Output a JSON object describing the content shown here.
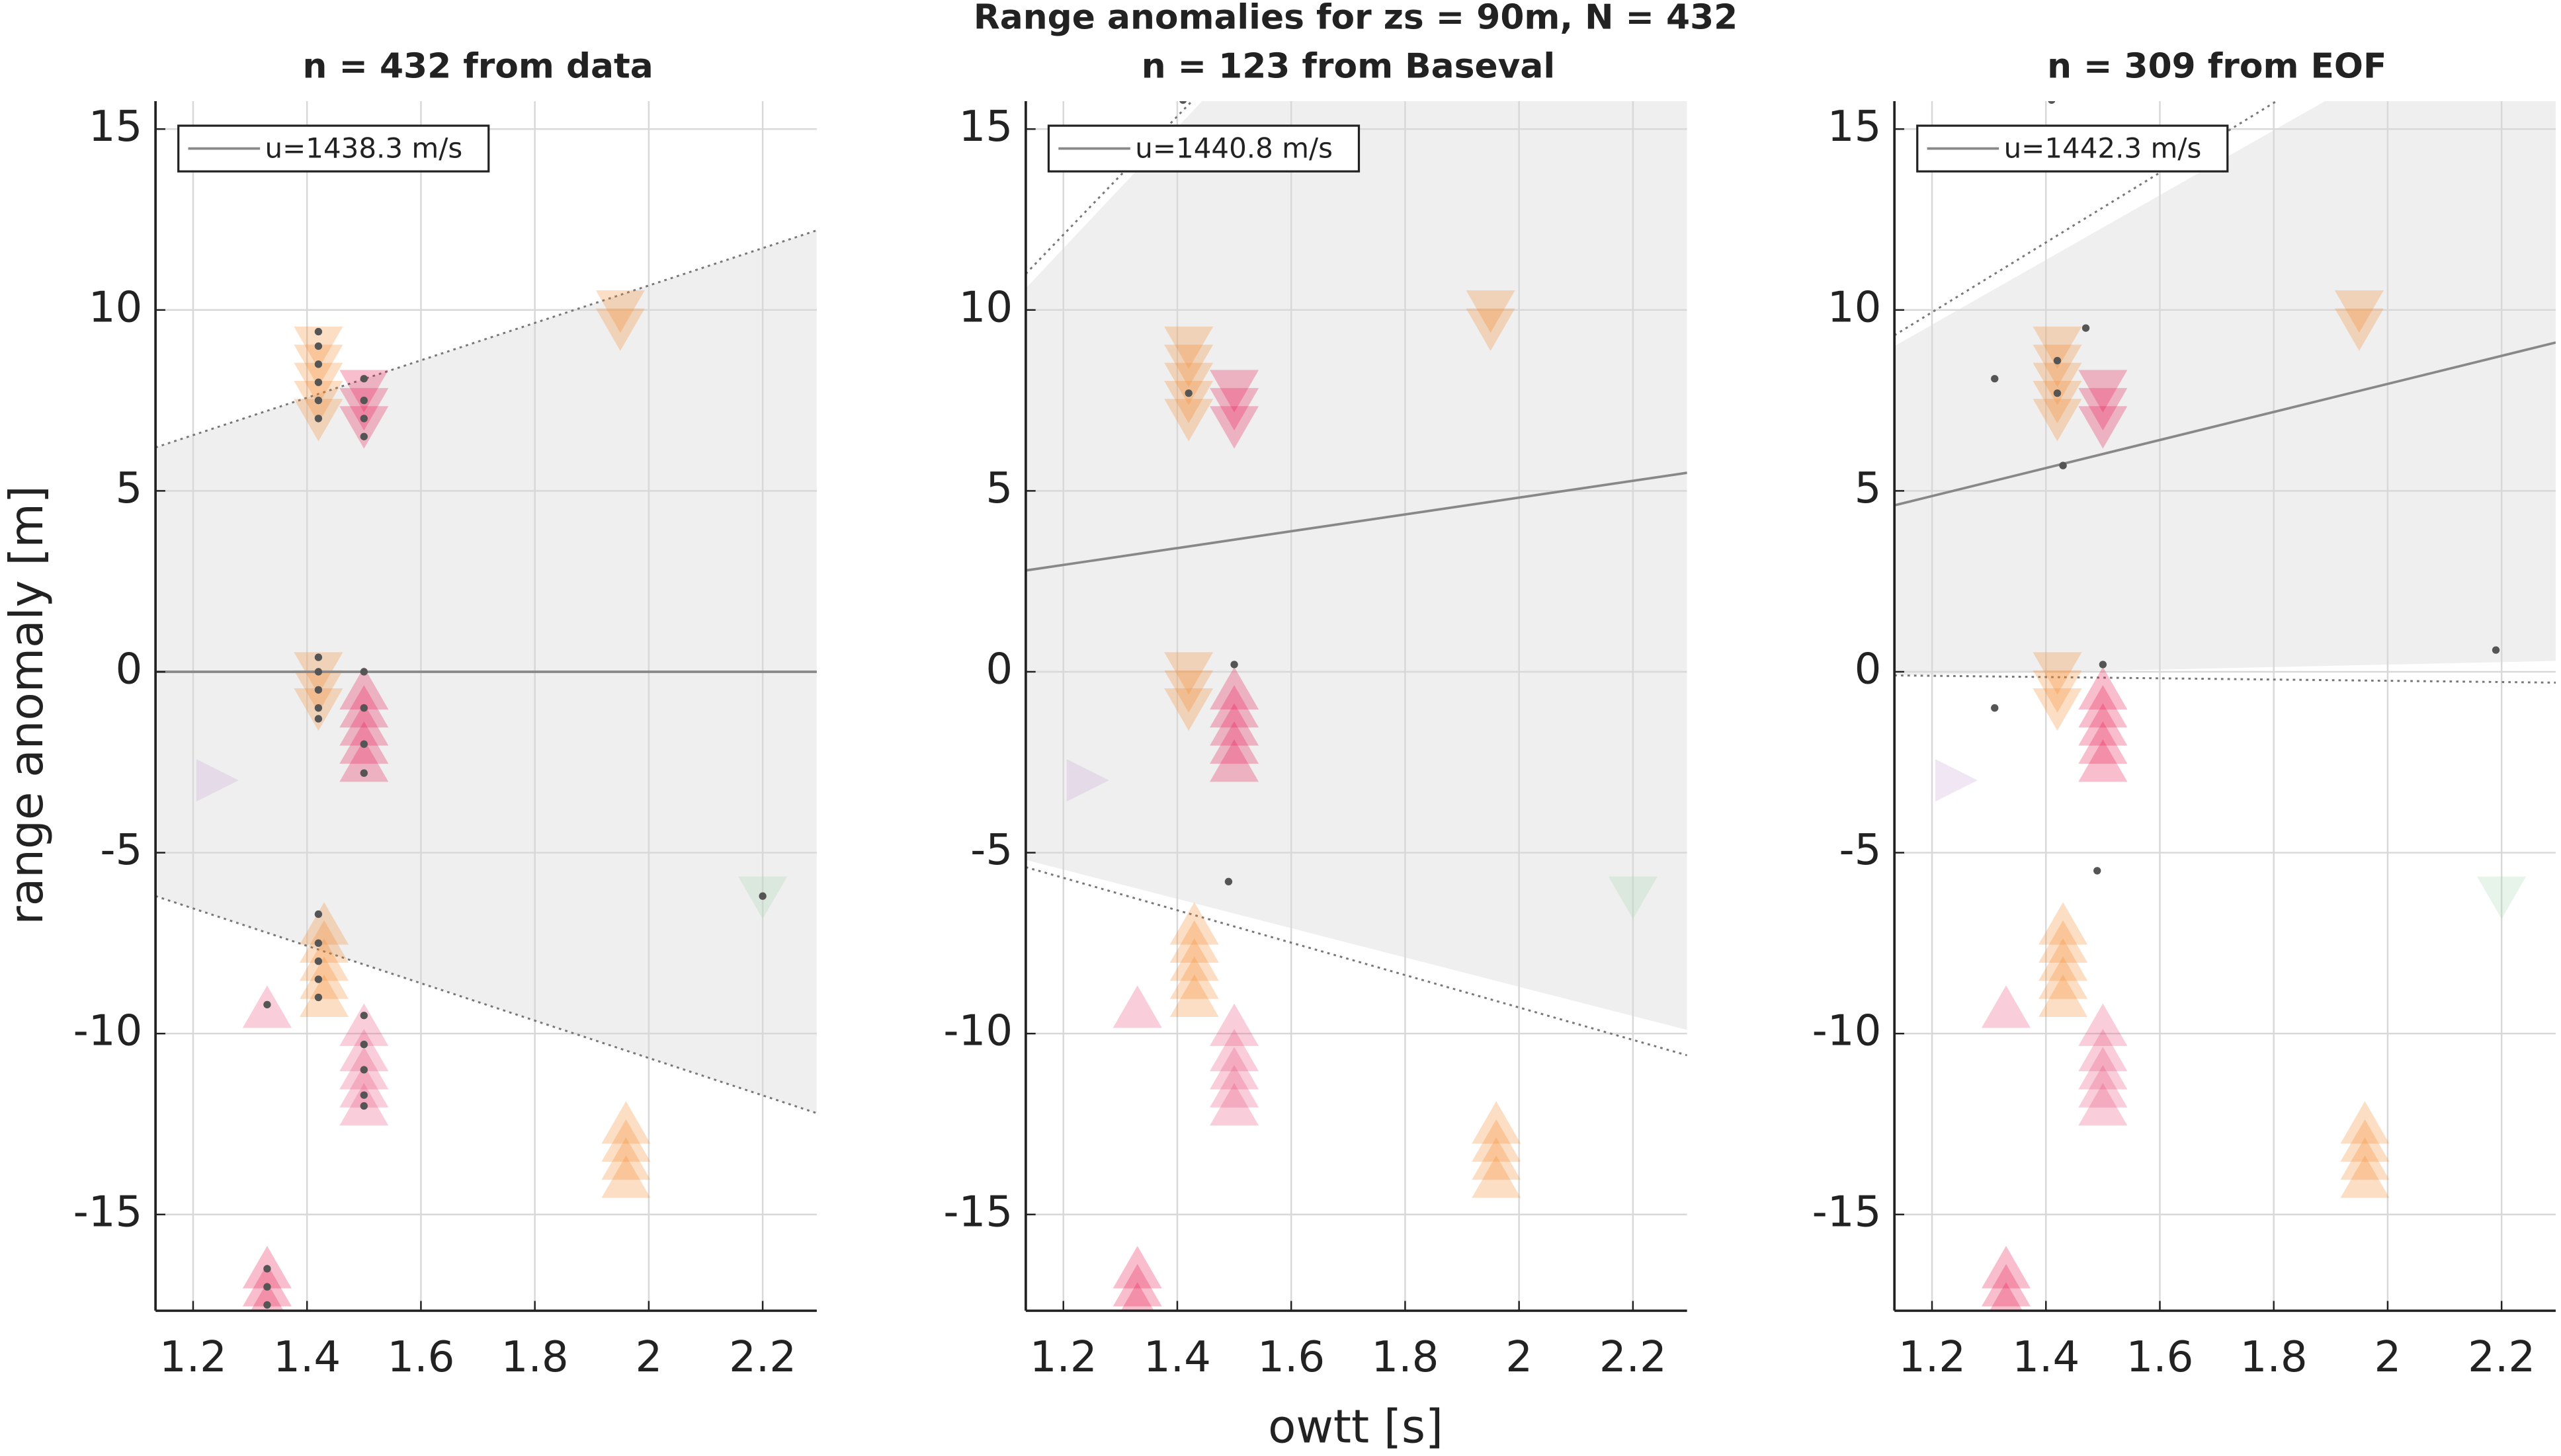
{
  "title": "Range anomalies for zs = 90m, N = 432",
  "xlabel": "owtt [s]",
  "ylabel": "range anomaly [m]",
  "chart_data": [
    {
      "type": "scatter",
      "title": "n = 432 from data",
      "xlim": [
        1.134,
        2.295
      ],
      "ylim": [
        -17.66,
        15.77
      ],
      "xticks": [
        1.2,
        1.4,
        1.6,
        1.8,
        2,
        2.2
      ],
      "yticks": [
        -15,
        -10,
        -5,
        0,
        5,
        10,
        15
      ],
      "grid": true,
      "fit": {
        "name": "u=1438.3 m/s",
        "color": "#888888",
        "x": [
          1.134,
          2.295
        ],
        "y": [
          0,
          0
        ]
      },
      "band": {
        "color": "#efefef",
        "x": [
          1.134,
          2.295
        ],
        "upper": [
          6.2,
          12.2
        ],
        "lower": [
          -6.2,
          -12.2
        ]
      },
      "limits": [
        {
          "x": [
            1.134,
            2.295
          ],
          "y": [
            6.2,
            12.2
          ]
        },
        {
          "x": [
            1.134,
            2.295
          ],
          "y": [
            -6.2,
            -12.2
          ]
        }
      ],
      "groups": [
        {
          "shape": "down",
          "color": "#f58a2a",
          "x": 1.42,
          "y": [
            9,
            8.5,
            8,
            7.5,
            7
          ]
        },
        {
          "shape": "down",
          "color": "#e8174f",
          "x": 1.5,
          "y": [
            7.8,
            7.3,
            6.8
          ]
        },
        {
          "shape": "down",
          "color": "#f58a2a",
          "x": 1.95,
          "y": [
            10,
            9.5
          ]
        },
        {
          "shape": "down",
          "color": "#f58a2a",
          "x": 1.42,
          "y": [
            0,
            -0.5,
            -1
          ]
        },
        {
          "shape": "up",
          "color": "#e8174f",
          "x": 1.5,
          "y": [
            -0.5,
            -1,
            -1.5,
            -2,
            -2.5
          ]
        },
        {
          "shape": "right",
          "color": "#c9a6d6",
          "x": 1.24,
          "y": [
            -3
          ]
        },
        {
          "shape": "down",
          "color": "#a8d8b0",
          "x": 2.2,
          "y": [
            -6.2
          ]
        },
        {
          "shape": "up",
          "color": "#f58a2a",
          "x": 1.43,
          "y": [
            -7,
            -7.5,
            -8,
            -8.5,
            -9
          ]
        },
        {
          "shape": "up",
          "color": "#e8507a",
          "x": 1.33,
          "y": [
            -9.3
          ]
        },
        {
          "shape": "up",
          "color": "#e8507a",
          "x": 1.5,
          "y": [
            -9.8,
            -10.5,
            -11,
            -11.5,
            -12
          ]
        },
        {
          "shape": "up",
          "color": "#f58a2a",
          "x": 1.96,
          "y": [
            -12.5,
            -13,
            -13.5,
            -14
          ]
        },
        {
          "shape": "up",
          "color": "#e8174f",
          "x": 1.33,
          "y": [
            -16.5,
            -17,
            -17.5
          ]
        }
      ],
      "dots": {
        "color": "#555555",
        "x": [
          1.42,
          1.42,
          1.42,
          1.42,
          1.42,
          1.42,
          1.42,
          1.42,
          1.42,
          1.42,
          1.42,
          1.42,
          1.42,
          1.42,
          1.42,
          1.42,
          1.5,
          1.5,
          1.5,
          1.5,
          1.5,
          1.5,
          1.5,
          1.5,
          1.5,
          1.5,
          1.5,
          1.5,
          1.5,
          1.33,
          1.33,
          1.33,
          1.33,
          2.2
        ],
        "y": [
          9.4,
          9,
          8.5,
          8,
          7.5,
          7,
          0.4,
          0,
          -0.5,
          -1,
          -1.3,
          -6.7,
          -7.5,
          -8,
          -8.5,
          -9,
          8.1,
          7.5,
          7,
          6.5,
          0,
          -1,
          -2,
          -2.8,
          -9.5,
          -10.3,
          -11,
          -11.7,
          -12,
          -9.2,
          -16.5,
          -17,
          -17.5,
          -6.2
        ]
      }
    },
    {
      "type": "scatter",
      "title": "n = 123 from Baseval",
      "xlim": [
        1.134,
        2.295
      ],
      "ylim": [
        -17.66,
        15.77
      ],
      "xticks": [
        1.2,
        1.4,
        1.6,
        1.8,
        2,
        2.2
      ],
      "yticks": [
        -15,
        -10,
        -5,
        0,
        5,
        10,
        15
      ],
      "grid": true,
      "fit": {
        "name": "u=1440.8 m/s",
        "color": "#888888",
        "x": [
          1.134,
          2.295
        ],
        "y": [
          2.8,
          5.5
        ]
      },
      "band": {
        "color": "#efefef",
        "x": [
          1.134,
          2.295
        ],
        "upper": [
          10.6,
          30
        ],
        "lower": [
          -5.2,
          -9.9
        ]
      },
      "limits": [
        {
          "x": [
            1.134,
            2.295
          ],
          "y": [
            11,
            30
          ]
        },
        {
          "x": [
            1.134,
            2.295
          ],
          "y": [
            -5.4,
            -10.6
          ]
        }
      ],
      "groups": [
        {
          "shape": "down",
          "color": "#f58a2a",
          "x": 1.42,
          "y": [
            9,
            8.5,
            8,
            7.5,
            7
          ]
        },
        {
          "shape": "down",
          "color": "#e8174f",
          "x": 1.5,
          "y": [
            7.8,
            7.3,
            6.8
          ]
        },
        {
          "shape": "down",
          "color": "#f58a2a",
          "x": 1.95,
          "y": [
            10,
            9.5
          ]
        },
        {
          "shape": "down",
          "color": "#f58a2a",
          "x": 1.42,
          "y": [
            0,
            -0.5,
            -1
          ]
        },
        {
          "shape": "up",
          "color": "#e8174f",
          "x": 1.5,
          "y": [
            -0.5,
            -1,
            -1.5,
            -2,
            -2.5
          ]
        },
        {
          "shape": "right",
          "color": "#c9a6d6",
          "x": 1.24,
          "y": [
            -3
          ]
        },
        {
          "shape": "down",
          "color": "#a8d8b0",
          "x": 2.2,
          "y": [
            -6.2
          ]
        },
        {
          "shape": "up",
          "color": "#f58a2a",
          "x": 1.43,
          "y": [
            -7,
            -7.5,
            -8,
            -8.5,
            -9
          ]
        },
        {
          "shape": "up",
          "color": "#e8507a",
          "x": 1.33,
          "y": [
            -9.3
          ]
        },
        {
          "shape": "up",
          "color": "#e8507a",
          "x": 1.5,
          "y": [
            -9.8,
            -10.5,
            -11,
            -11.5,
            -12
          ]
        },
        {
          "shape": "up",
          "color": "#f58a2a",
          "x": 1.96,
          "y": [
            -12.5,
            -13,
            -13.5,
            -14
          ]
        },
        {
          "shape": "up",
          "color": "#e8174f",
          "x": 1.33,
          "y": [
            -16.5,
            -17,
            -17.5
          ]
        }
      ],
      "dots": {
        "color": "#555555",
        "x": [
          1.41,
          1.42,
          1.5,
          1.49
        ],
        "y": [
          15.8,
          7.7,
          0.2,
          -5.8
        ]
      }
    },
    {
      "type": "scatter",
      "title": "n = 309 from EOF",
      "xlim": [
        1.134,
        2.295
      ],
      "ylim": [
        -17.66,
        15.77
      ],
      "xticks": [
        1.2,
        1.4,
        1.6,
        1.8,
        2,
        2.2
      ],
      "yticks": [
        -15,
        -10,
        -5,
        0,
        5,
        10,
        15
      ],
      "grid": true,
      "fit": {
        "name": "u=1442.3 m/s",
        "color": "#888888",
        "x": [
          1.134,
          2.295
        ],
        "y": [
          4.6,
          9.1
        ]
      },
      "band": {
        "color": "#efefef",
        "x": [
          1.134,
          2.295
        ],
        "upper": [
          9,
          19.4
        ],
        "lower": [
          -0.1,
          0.3
        ]
      },
      "limits": [
        {
          "x": [
            1.134,
            2.295
          ],
          "y": [
            9.3,
            20.5
          ]
        },
        {
          "x": [
            1.134,
            2.295
          ],
          "y": [
            -0.1,
            -0.3
          ]
        }
      ],
      "groups": [
        {
          "shape": "down",
          "color": "#f58a2a",
          "x": 1.42,
          "y": [
            9,
            8.5,
            8,
            7.5,
            7
          ]
        },
        {
          "shape": "down",
          "color": "#e8174f",
          "x": 1.5,
          "y": [
            7.8,
            7.3,
            6.8
          ]
        },
        {
          "shape": "down",
          "color": "#f58a2a",
          "x": 1.95,
          "y": [
            10,
            9.5
          ]
        },
        {
          "shape": "down",
          "color": "#f58a2a",
          "x": 1.42,
          "y": [
            0,
            -0.5,
            -1
          ]
        },
        {
          "shape": "up",
          "color": "#e8174f",
          "x": 1.5,
          "y": [
            -0.5,
            -1,
            -1.5,
            -2,
            -2.5
          ]
        },
        {
          "shape": "right",
          "color": "#c9a6d6",
          "x": 1.24,
          "y": [
            -3
          ]
        },
        {
          "shape": "down",
          "color": "#a8d8b0",
          "x": 2.2,
          "y": [
            -6.2
          ]
        },
        {
          "shape": "up",
          "color": "#f58a2a",
          "x": 1.43,
          "y": [
            -7,
            -7.5,
            -8,
            -8.5,
            -9
          ]
        },
        {
          "shape": "up",
          "color": "#e8507a",
          "x": 1.33,
          "y": [
            -9.3
          ]
        },
        {
          "shape": "up",
          "color": "#e8507a",
          "x": 1.5,
          "y": [
            -9.8,
            -10.5,
            -11,
            -11.5,
            -12
          ]
        },
        {
          "shape": "up",
          "color": "#f58a2a",
          "x": 1.96,
          "y": [
            -12.5,
            -13,
            -13.5,
            -14
          ]
        },
        {
          "shape": "up",
          "color": "#e8174f",
          "x": 1.33,
          "y": [
            -16.5,
            -17,
            -17.5
          ]
        }
      ],
      "dots": {
        "color": "#555555",
        "x": [
          1.41,
          1.31,
          1.42,
          1.42,
          1.47,
          1.43,
          1.31,
          1.5,
          1.49,
          2.19
        ],
        "y": [
          15.8,
          8.1,
          8.6,
          7.7,
          9.5,
          5.7,
          -1,
          0.2,
          -5.5,
          0.6
        ]
      }
    }
  ]
}
